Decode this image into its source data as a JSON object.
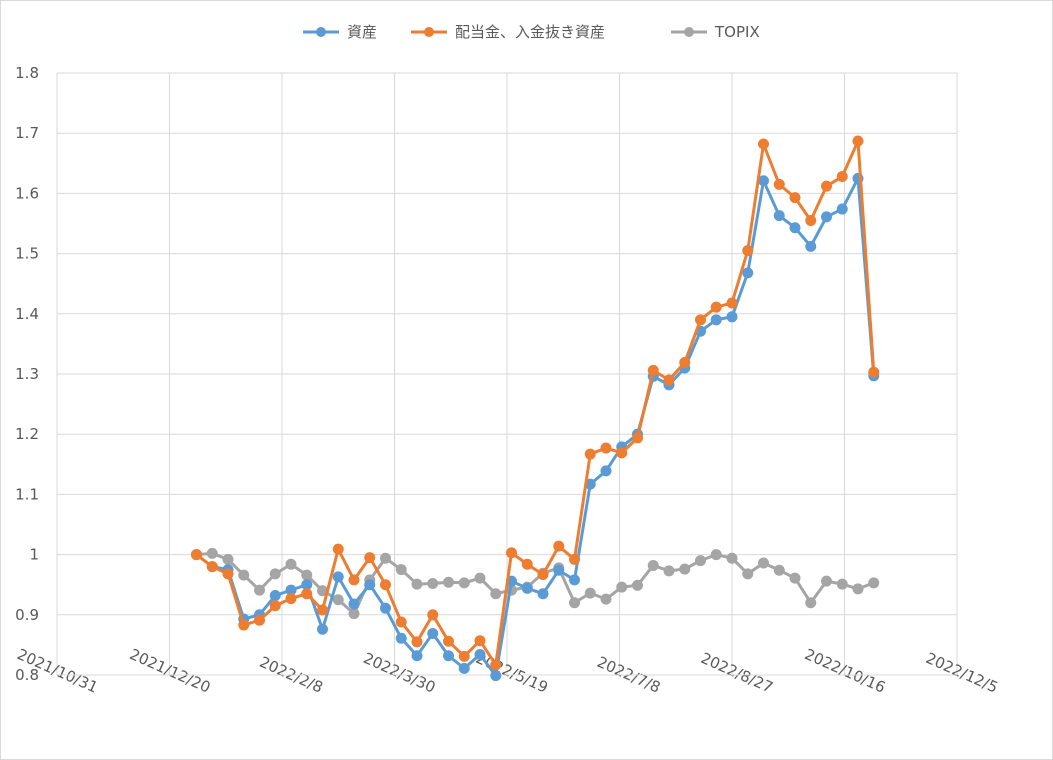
{
  "chart_data": {
    "type": "line",
    "title": "",
    "xlabel": "",
    "ylabel": "",
    "ylim": [
      0.8,
      1.8
    ],
    "y_ticks": [
      "0.8",
      "0.9",
      "1",
      "1.1",
      "1.2",
      "1.3",
      "1.4",
      "1.5",
      "1.6",
      "1.7",
      "1.8"
    ],
    "x_range": [
      "2021-10-31",
      "2022-12-05"
    ],
    "x_ticks": [
      "2021/10/31",
      "2021/12/20",
      "2022/2/8",
      "2022/3/30",
      "2022/5/19",
      "2022/7/8",
      "2022/8/27",
      "2022/10/16",
      "2022/12/5"
    ],
    "grid": true,
    "legend_position": "top",
    "x": [
      "2022-01-01",
      "2022-01-08",
      "2022-01-15",
      "2022-01-22",
      "2022-01-29",
      "2022-02-05",
      "2022-02-12",
      "2022-02-19",
      "2022-02-26",
      "2022-03-05",
      "2022-03-12",
      "2022-03-19",
      "2022-03-26",
      "2022-04-02",
      "2022-04-09",
      "2022-04-16",
      "2022-04-23",
      "2022-04-30",
      "2022-05-07",
      "2022-05-14",
      "2022-05-21",
      "2022-05-28",
      "2022-06-04",
      "2022-06-11",
      "2022-06-18",
      "2022-06-25",
      "2022-07-02",
      "2022-07-09",
      "2022-07-16",
      "2022-07-23",
      "2022-07-30",
      "2022-08-06",
      "2022-08-13",
      "2022-08-20",
      "2022-08-27",
      "2022-09-03",
      "2022-09-10",
      "2022-09-17",
      "2022-09-24",
      "2022-10-01",
      "2022-10-08",
      "2022-10-15",
      "2022-10-22",
      "2022-10-29"
    ],
    "series": [
      {
        "name": "資産",
        "color": "#5b9bd5",
        "values": [
          1.0,
          0.98,
          0.975,
          0.893,
          0.9,
          0.932,
          0.941,
          0.95,
          0.876,
          0.963,
          0.918,
          0.95,
          0.911,
          0.861,
          0.832,
          0.869,
          0.832,
          0.811,
          0.834,
          0.799,
          0.956,
          0.944,
          0.935,
          0.974,
          0.958,
          1.117,
          1.139,
          1.179,
          1.2,
          1.296,
          1.282,
          1.31,
          1.371,
          1.39,
          1.395,
          1.468,
          1.621,
          1.563,
          1.543,
          1.512,
          1.561,
          1.574,
          1.625,
          1.297
        ]
      },
      {
        "name": "配当金、入金抜き資産",
        "color": "#ed7d31",
        "values": [
          1.0,
          0.98,
          0.968,
          0.883,
          0.891,
          0.915,
          0.927,
          0.935,
          0.908,
          1.009,
          0.958,
          0.995,
          0.95,
          0.888,
          0.855,
          0.9,
          0.856,
          0.831,
          0.857,
          0.817,
          1.003,
          0.984,
          0.967,
          1.014,
          0.992,
          1.167,
          1.177,
          1.169,
          1.194,
          1.306,
          1.29,
          1.319,
          1.39,
          1.411,
          1.418,
          1.505,
          1.682,
          1.615,
          1.593,
          1.555,
          1.612,
          1.628,
          1.687,
          1.303
        ]
      },
      {
        "name": "TOPIX",
        "color": "#a5a5a5",
        "values": [
          1.0,
          1.002,
          0.992,
          0.966,
          0.941,
          0.968,
          0.984,
          0.966,
          0.94,
          0.925,
          0.902,
          0.958,
          0.994,
          0.975,
          0.951,
          0.952,
          0.954,
          0.953,
          0.961,
          0.935,
          0.941,
          0.946,
          0.969,
          0.978,
          0.92,
          0.936,
          0.926,
          0.946,
          0.949,
          0.982,
          0.973,
          0.976,
          0.99,
          1.0,
          0.994,
          0.968,
          0.986,
          0.974,
          0.961,
          0.92,
          0.956,
          0.951,
          0.943,
          0.953
        ]
      }
    ]
  }
}
